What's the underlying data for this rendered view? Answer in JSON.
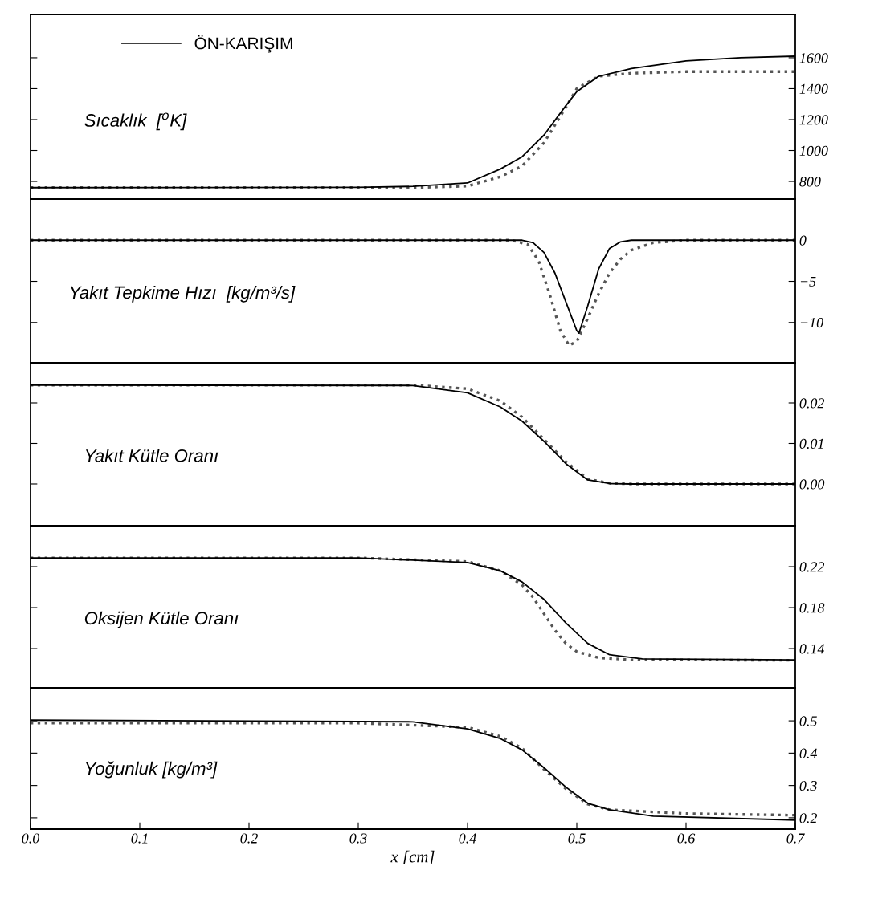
{
  "chart_data": [
    {
      "type": "line",
      "annotations": [
        "Sıcaklık  [$^{o}$K]"
      ],
      "xlim": [
        0,
        0.7
      ],
      "ylim": [
        686,
        1880
      ],
      "yticks": [
        800,
        1000,
        1200,
        1400,
        1600
      ],
      "tick_labels": "y",
      "legend": "top left",
      "grid": false,
      "series": [
        {
          "color": "#555555",
          "line_style": "dotted",
          "x": [
            0,
            0.35,
            0.4,
            0.43,
            0.45,
            0.47,
            0.49,
            0.5,
            0.52,
            0.55,
            0.6,
            0.7
          ],
          "values": [
            760,
            760,
            770,
            830,
            900,
            1050,
            1280,
            1400,
            1480,
            1500,
            1510,
            1510
          ]
        },
        {
          "name": "ÖN-KARIŞIM",
          "color": "#000000",
          "line_style": "solid",
          "x": [
            0,
            0.3,
            0.35,
            0.4,
            0.43,
            0.45,
            0.47,
            0.49,
            0.5,
            0.52,
            0.55,
            0.6,
            0.65,
            0.7
          ],
          "values": [
            760,
            762,
            768,
            790,
            880,
            960,
            1100,
            1290,
            1380,
            1480,
            1530,
            1580,
            1600,
            1610
          ]
        }
      ]
    },
    {
      "type": "line",
      "annotations": [
        "Yakıt Tepkime Hızı  [kg/m³/s]"
      ],
      "xlim": [
        0,
        0.7
      ],
      "ylim": [
        -14.9,
        5.0
      ],
      "yticks": [
        0,
        {
          "value": -5,
          "label": "−5"
        },
        {
          "value": -10,
          "label": "−10"
        }
      ],
      "tick_labels": "y",
      "grid": false,
      "series": [
        {
          "color": "#555555",
          "line_style": "dotted",
          "x": [
            0,
            0.44,
            0.455,
            0.465,
            0.475,
            0.485,
            0.493,
            0.5,
            0.51,
            0.52,
            0.53,
            0.54,
            0.55,
            0.57,
            0.6,
            0.7
          ],
          "values": [
            0,
            0,
            -0.5,
            -2.5,
            -6.5,
            -11,
            -12.8,
            -12.3,
            -9.5,
            -6.5,
            -4,
            -2.3,
            -1.2,
            -0.3,
            0,
            0
          ]
        },
        {
          "color": "#000000",
          "line_style": "solid",
          "x": [
            0,
            0.45,
            0.46,
            0.47,
            0.48,
            0.49,
            0.5,
            0.502,
            0.51,
            0.52,
            0.53,
            0.54,
            0.55,
            0.7
          ],
          "values": [
            0,
            0,
            -0.3,
            -1.5,
            -4,
            -7.5,
            -11,
            -11.3,
            -8,
            -3.5,
            -1,
            -0.2,
            0,
            0
          ]
        }
      ]
    },
    {
      "type": "line",
      "annotations": [
        "Yakıt Kütle Oranı"
      ],
      "xlim": [
        0,
        0.7
      ],
      "ylim": [
        -0.0103,
        0.0299
      ],
      "yticks": [
        0.02,
        0.01,
        {
          "value": 0,
          "label": "0.00"
        }
      ],
      "tick_labels": "y",
      "grid": false,
      "series": [
        {
          "color": "#555555",
          "line_style": "dotted",
          "x": [
            0,
            0.35,
            0.4,
            0.43,
            0.45,
            0.47,
            0.49,
            0.51,
            0.53,
            0.55,
            0.7
          ],
          "values": [
            0.0244,
            0.0244,
            0.0235,
            0.0205,
            0.0165,
            0.011,
            0.0055,
            0.0012,
            0.0002,
            0,
            0
          ]
        },
        {
          "color": "#000000",
          "line_style": "solid",
          "x": [
            0,
            0.35,
            0.4,
            0.43,
            0.45,
            0.47,
            0.49,
            0.51,
            0.53,
            0.55,
            0.7
          ],
          "values": [
            0.0244,
            0.0243,
            0.0225,
            0.019,
            0.0155,
            0.0105,
            0.005,
            0.001,
            0.0001,
            0,
            0
          ]
        }
      ]
    },
    {
      "type": "line",
      "annotations": [
        "Oksijen Kütle Oranı"
      ],
      "xlim": [
        0,
        0.7
      ],
      "ylim": [
        0.1016,
        0.26
      ],
      "yticks": [
        0.22,
        0.18,
        0.14
      ],
      "tick_labels": "y",
      "grid": false,
      "series": [
        {
          "color": "#555555",
          "line_style": "dotted",
          "x": [
            0,
            0.3,
            0.4,
            0.43,
            0.45,
            0.46,
            0.47,
            0.48,
            0.49,
            0.5,
            0.52,
            0.55,
            0.7
          ],
          "values": [
            0.2286,
            0.2286,
            0.225,
            0.216,
            0.202,
            0.19,
            0.174,
            0.158,
            0.145,
            0.137,
            0.131,
            0.129,
            0.1285
          ]
        },
        {
          "color": "#000000",
          "line_style": "solid",
          "x": [
            0,
            0.3,
            0.4,
            0.43,
            0.45,
            0.47,
            0.49,
            0.51,
            0.53,
            0.56,
            0.7
          ],
          "values": [
            0.2286,
            0.2286,
            0.224,
            0.216,
            0.205,
            0.188,
            0.165,
            0.145,
            0.134,
            0.13,
            0.129
          ]
        }
      ]
    },
    {
      "type": "line",
      "annotations": [
        "Yoğunluk [kg/m³]"
      ],
      "xlabel": "x [cm]",
      "xlim": [
        0,
        0.7
      ],
      "xticks": [
        {
          "value": 0,
          "label": "0.0"
        },
        0.1,
        0.2,
        0.3,
        0.4,
        0.5,
        0.6,
        0.7
      ],
      "ylim": [
        0.165,
        0.602
      ],
      "yticks": [
        0.5,
        0.4,
        0.3,
        0.2
      ],
      "grid": false,
      "series": [
        {
          "color": "#555555",
          "line_style": "dotted",
          "x": [
            0,
            0.3,
            0.4,
            0.43,
            0.45,
            0.47,
            0.49,
            0.51,
            0.53,
            0.6,
            0.7
          ],
          "values": [
            0.493,
            0.493,
            0.48,
            0.452,
            0.415,
            0.35,
            0.29,
            0.242,
            0.225,
            0.213,
            0.208
          ]
        },
        {
          "color": "#000000",
          "line_style": "solid",
          "x": [
            0,
            0.35,
            0.4,
            0.43,
            0.45,
            0.47,
            0.49,
            0.51,
            0.53,
            0.57,
            0.7
          ],
          "values": [
            0.502,
            0.497,
            0.475,
            0.445,
            0.41,
            0.355,
            0.295,
            0.245,
            0.225,
            0.205,
            0.193
          ]
        }
      ]
    }
  ]
}
